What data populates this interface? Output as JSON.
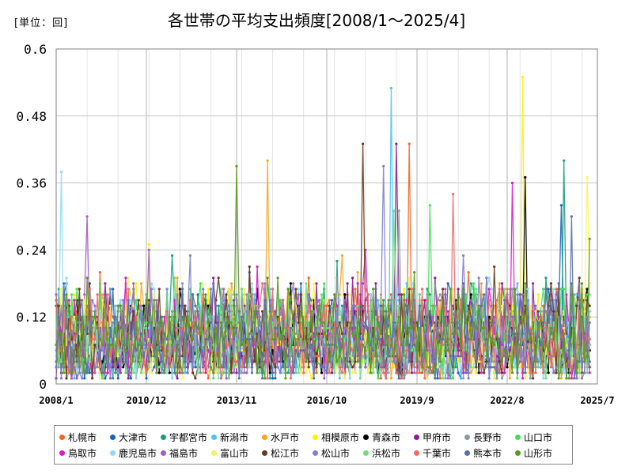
{
  "unit_label": "[単位：回]",
  "title": "各世帯の平均支出頻度[2008/1～2025/4]",
  "chart_data": {
    "type": "line",
    "x_start": "2008/1",
    "x_end": "2025/7",
    "ylim": [
      0,
      0.6
    ],
    "y_ticks": [
      "0",
      "0.12",
      "0.24",
      "0.36",
      "0.48",
      "0.6"
    ],
    "x_ticks": [
      "2008/1",
      "2010/12",
      "2013/11",
      "2016/10",
      "2019/9",
      "2022/8",
      "2025/7"
    ],
    "grid": true,
    "legend_position": "bottom",
    "series_note_levels": {
      "typical_range": [
        0.01,
        0.2
      ]
    },
    "series": [
      {
        "name": "札幌市",
        "color": "#f26522",
        "peak_value": 0.43,
        "peak_date": "2019/6"
      },
      {
        "name": "大津市",
        "color": "#1565c0",
        "peak_value": 0.32,
        "peak_date": "2024/5"
      },
      {
        "name": "宇都宮市",
        "color": "#1a9e77",
        "peak_value": 0.4,
        "peak_date": "2024/6"
      },
      {
        "name": "新潟市",
        "color": "#4fc3f7",
        "peak_value": 0.53,
        "peak_date": "2018/11"
      },
      {
        "name": "水戸市",
        "color": "#f5a623",
        "peak_value": 0.4,
        "peak_date": "2014/11"
      },
      {
        "name": "相模原市",
        "color": "#fff200",
        "peak_value": 0.55,
        "peak_date": "2023/2"
      },
      {
        "name": "青森市",
        "color": "#000000",
        "peak_value": 0.37,
        "peak_date": "2023/3"
      },
      {
        "name": "甲府市",
        "color": "#8e1b9a",
        "peak_value": 0.43,
        "peak_date": "2019/1"
      },
      {
        "name": "長野市",
        "color": "#8a9ba8",
        "peak_value": 0.31,
        "peak_date": "2019/2"
      },
      {
        "name": "山口市",
        "color": "#44e05a",
        "peak_value": 0.32,
        "peak_date": "2020/2"
      },
      {
        "name": "鳥取市",
        "color": "#d81bc8",
        "peak_value": 0.36,
        "peak_date": "2022/10"
      },
      {
        "name": "鹿児島市",
        "color": "#8fdcf2",
        "peak_value": 0.38,
        "peak_date": "2008/3"
      },
      {
        "name": "福島市",
        "color": "#a35cc9",
        "peak_value": 0.3,
        "peak_date": "2009/1"
      },
      {
        "name": "富山市",
        "color": "#f7f55a",
        "peak_value": 0.37,
        "peak_date": "2025/3"
      },
      {
        "name": "松江市",
        "color": "#6b3a1e",
        "peak_value": 0.43,
        "peak_date": "2017/12"
      },
      {
        "name": "松山市",
        "color": "#7f7fd0",
        "peak_value": 0.39,
        "peak_date": "2018/8"
      },
      {
        "name": "浜松市",
        "color": "#6ee07a",
        "peak_value": 0.31,
        "peak_date": "2018/12"
      },
      {
        "name": "千葉市",
        "color": "#f06a6a",
        "peak_value": 0.34,
        "peak_date": "2020/11"
      },
      {
        "name": "熊本市",
        "color": "#5b6fa8",
        "peak_value": 0.3,
        "peak_date": "2024/9"
      },
      {
        "name": "山形市",
        "color": "#5a9a1e",
        "peak_value": 0.39,
        "peak_date": "2013/11"
      }
    ]
  }
}
